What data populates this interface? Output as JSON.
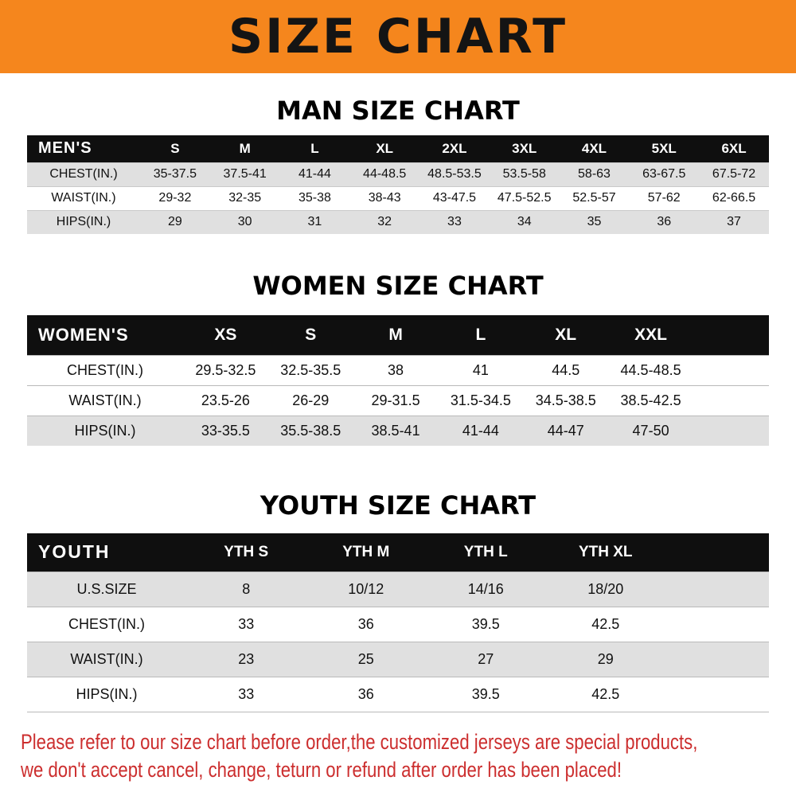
{
  "banner": {
    "title": "SIZE CHART"
  },
  "chart_data": [
    {
      "type": "table",
      "title": "MAN SIZE CHART",
      "header_label": "MEN'S",
      "columns": [
        "S",
        "M",
        "L",
        "XL",
        "2XL",
        "3XL",
        "4XL",
        "5XL",
        "6XL"
      ],
      "rows": [
        {
          "label": "CHEST(IN.)",
          "values": [
            "35-37.5",
            "37.5-41",
            "41-44",
            "44-48.5",
            "48.5-53.5",
            "53.5-58",
            "58-63",
            "63-67.5",
            "67.5-72"
          ]
        },
        {
          "label": "WAIST(IN.)",
          "values": [
            "29-32",
            "32-35",
            "35-38",
            "38-43",
            "43-47.5",
            "47.5-52.5",
            "52.5-57",
            "57-62",
            "62-66.5"
          ]
        },
        {
          "label": "HIPS(IN.)",
          "values": [
            "29",
            "30",
            "31",
            "32",
            "33",
            "34",
            "35",
            "36",
            "37"
          ]
        }
      ]
    },
    {
      "type": "table",
      "title": "WOMEN SIZE CHART",
      "header_label": "WOMEN'S",
      "columns": [
        "XS",
        "S",
        "M",
        "L",
        "XL",
        "XXL"
      ],
      "layout": {
        "trailing_spacer": true
      },
      "rows": [
        {
          "label": "CHEST(IN.)",
          "values": [
            "29.5-32.5",
            "32.5-35.5",
            "38",
            "41",
            "44.5",
            "44.5-48.5"
          ]
        },
        {
          "label": "WAIST(IN.)",
          "values": [
            "23.5-26",
            "26-29",
            "29-31.5",
            "31.5-34.5",
            "34.5-38.5",
            "38.5-42.5"
          ]
        },
        {
          "label": "HIPS(IN.)",
          "values": [
            "33-35.5",
            "35.5-38.5",
            "38.5-41",
            "41-44",
            "44-47",
            "47-50"
          ]
        }
      ]
    },
    {
      "type": "table",
      "title": "YOUTH SIZE CHART",
      "header_label": "YOUTH",
      "columns": [
        "YTH S",
        "YTH M",
        "YTH L",
        "YTH XL"
      ],
      "layout": {
        "trailing_spacer": true
      },
      "rows": [
        {
          "label": "U.S.SIZE",
          "values": [
            "8",
            "10/12",
            "14/16",
            "18/20"
          ]
        },
        {
          "label": "CHEST(IN.)",
          "values": [
            "33",
            "36",
            "39.5",
            "42.5"
          ]
        },
        {
          "label": "WAIST(IN.)",
          "values": [
            "23",
            "25",
            "27",
            "29"
          ]
        },
        {
          "label": "HIPS(IN.)",
          "values": [
            "33",
            "36",
            "39.5",
            "42.5"
          ]
        }
      ]
    }
  ],
  "footer": {
    "line1": "Please refer to our size chart before order,the customized jerseys are special products,",
    "line2": "we don't accept cancel, change, teturn or refund after order has been placed!"
  },
  "colors": {
    "banner-bg": "#F5861D",
    "table-header-bg": "#0F0F0F",
    "table-header-text": "#FFFFFF",
    "row-shade": "#E0E0E0",
    "notice-red": "#CC2E2E"
  }
}
